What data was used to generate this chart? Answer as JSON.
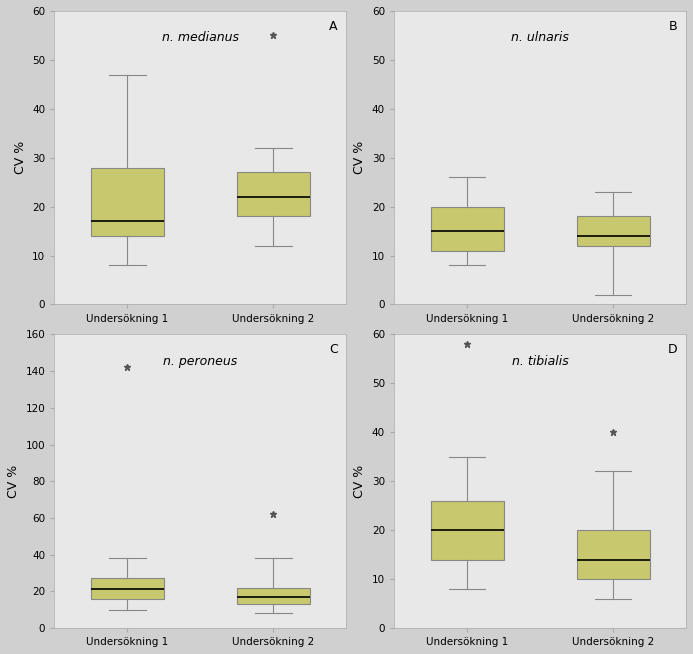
{
  "panels": [
    {
      "label": "A",
      "title": "n. medianus",
      "ylabel": "CV %",
      "ylim": [
        0,
        60
      ],
      "yticks": [
        0,
        10,
        20,
        30,
        40,
        50,
        60
      ],
      "boxes": [
        {
          "name": "Undersökning 1",
          "q1": 14,
          "median": 17,
          "q3": 28,
          "whisker_low": 8,
          "whisker_high": 47,
          "outliers": []
        },
        {
          "name": "Undersökning 2",
          "q1": 18,
          "median": 22,
          "q3": 27,
          "whisker_low": 12,
          "whisker_high": 32,
          "outliers": [
            55
          ]
        }
      ]
    },
    {
      "label": "B",
      "title": "n. ulnaris",
      "ylabel": "CV %",
      "ylim": [
        0,
        60
      ],
      "yticks": [
        0,
        10,
        20,
        30,
        40,
        50,
        60
      ],
      "boxes": [
        {
          "name": "Undersökning 1",
          "q1": 11,
          "median": 15,
          "q3": 20,
          "whisker_low": 8,
          "whisker_high": 26,
          "outliers": []
        },
        {
          "name": "Undersökning 2",
          "q1": 12,
          "median": 14,
          "q3": 18,
          "whisker_low": 2,
          "whisker_high": 23,
          "outliers": []
        }
      ]
    },
    {
      "label": "C",
      "title": "n. peroneus",
      "ylabel": "CV %",
      "ylim": [
        0,
        160
      ],
      "yticks": [
        0,
        20,
        40,
        60,
        80,
        100,
        120,
        140,
        160
      ],
      "boxes": [
        {
          "name": "Undersökning 1",
          "q1": 16,
          "median": 21,
          "q3": 27,
          "whisker_low": 10,
          "whisker_high": 38,
          "outliers": [
            142
          ]
        },
        {
          "name": "Undersökning 2",
          "q1": 13,
          "median": 17,
          "q3": 22,
          "whisker_low": 8,
          "whisker_high": 38,
          "outliers": [
            62
          ]
        }
      ]
    },
    {
      "label": "D",
      "title": "n. tibialis",
      "ylabel": "CV %",
      "ylim": [
        0,
        60
      ],
      "yticks": [
        0,
        10,
        20,
        30,
        40,
        50,
        60
      ],
      "boxes": [
        {
          "name": "Undersökning 1",
          "q1": 14,
          "median": 20,
          "q3": 26,
          "whisker_low": 8,
          "whisker_high": 35,
          "outliers": [
            58
          ]
        },
        {
          "name": "Undersökning 2",
          "q1": 10,
          "median": 14,
          "q3": 20,
          "whisker_low": 6,
          "whisker_high": 32,
          "outliers": [
            40
          ]
        }
      ]
    }
  ],
  "box_color": "#c8c86e",
  "box_edge_color": "#888888",
  "median_color": "#000000",
  "whisker_color": "#888888",
  "cap_color": "#888888",
  "outlier_color": "#555555",
  "bg_color": "#e8e8e8",
  "panel_bg": "#e8e8e8",
  "label_fontsize": 9,
  "title_fontsize": 9,
  "tick_fontsize": 7.5,
  "xlabel_fontsize": 7.5
}
